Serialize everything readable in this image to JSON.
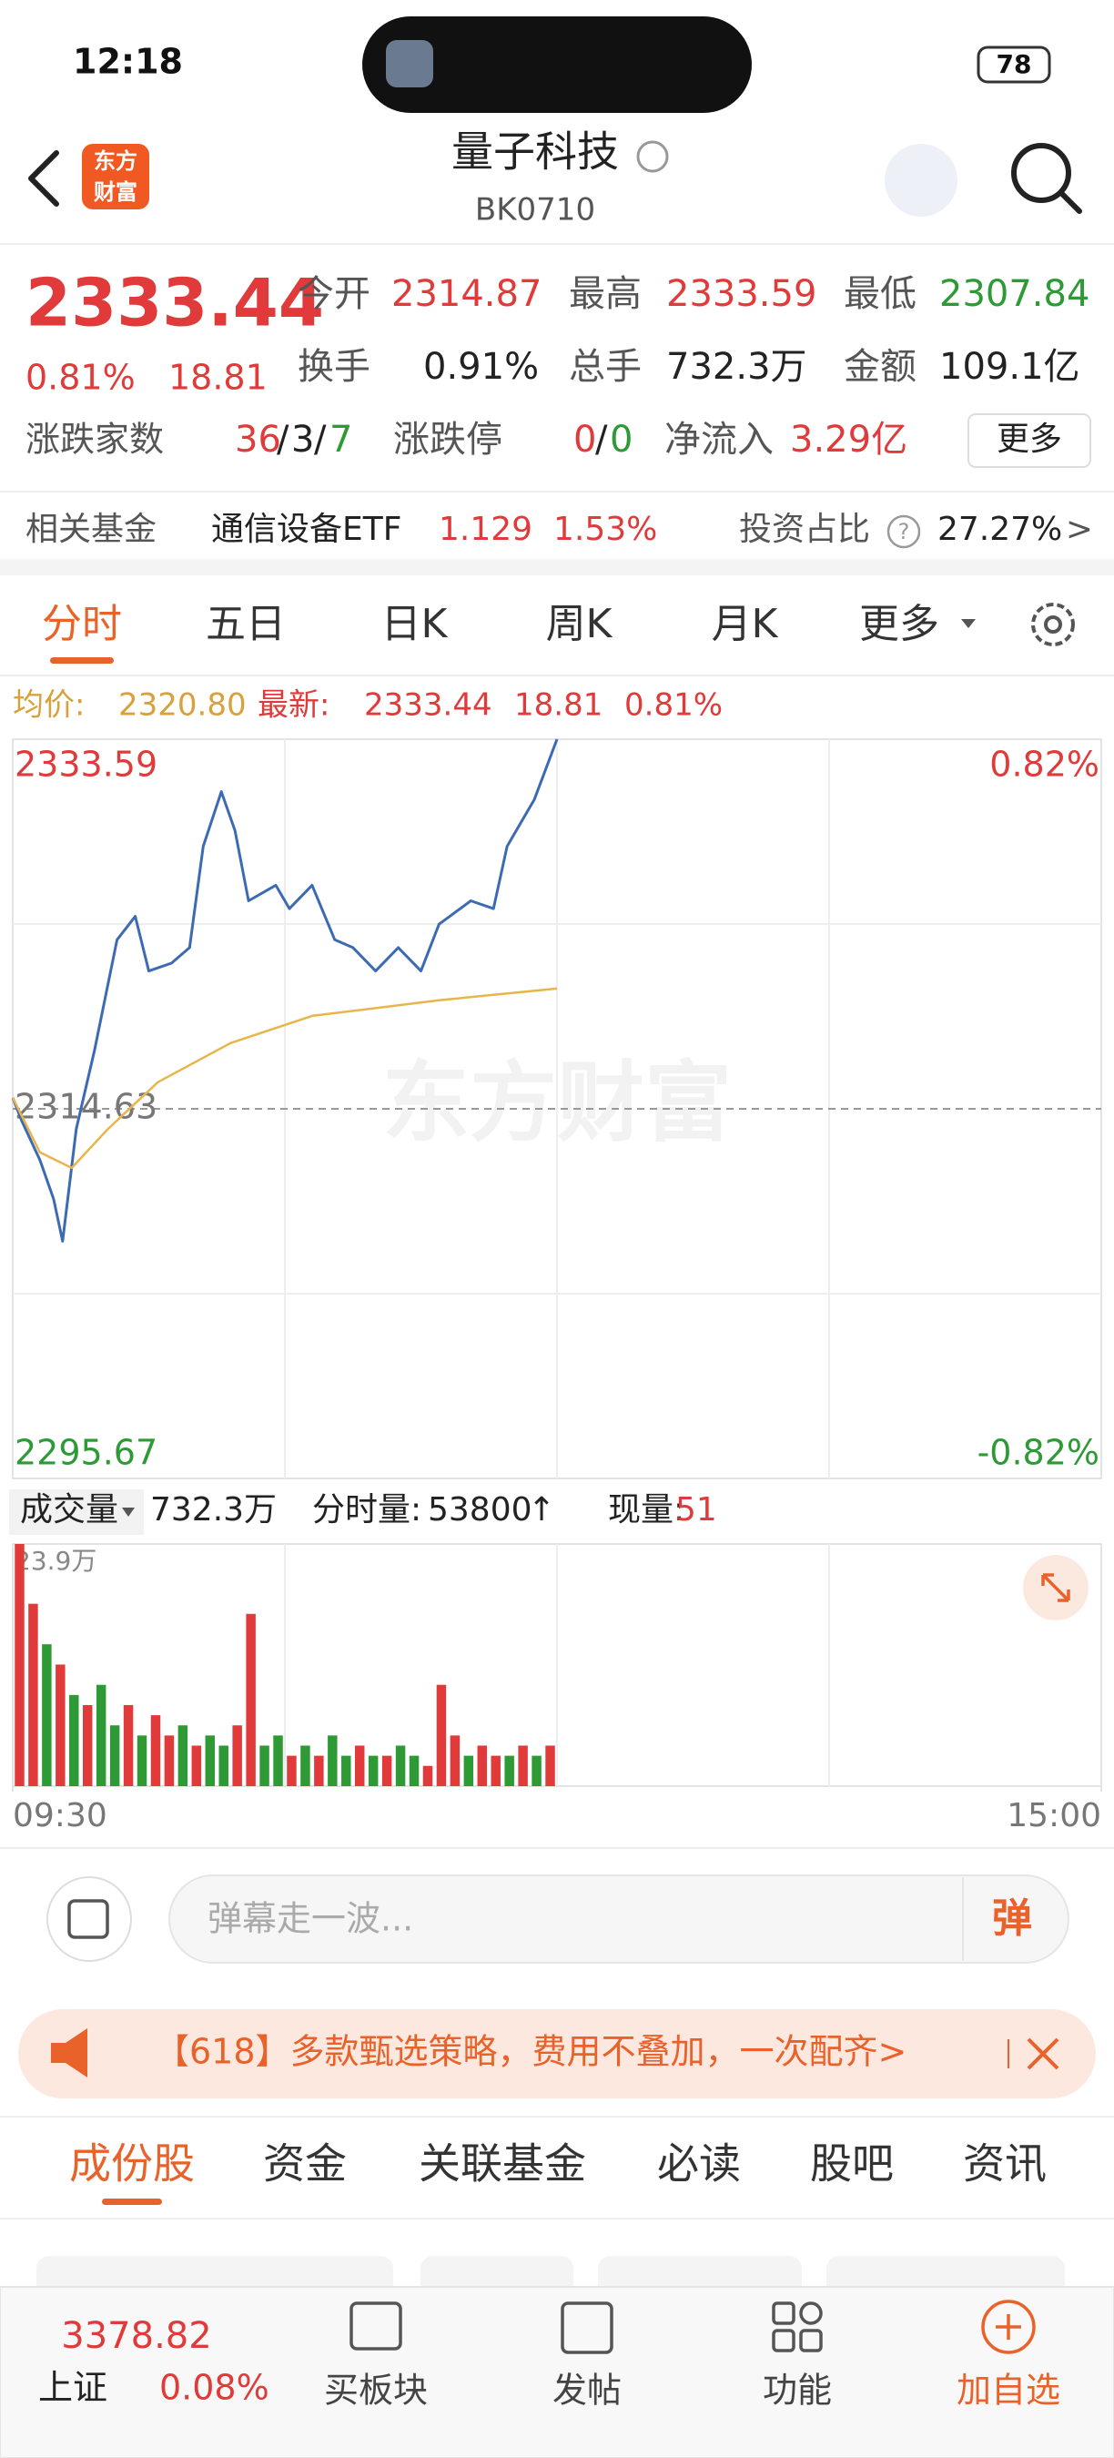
{
  "status_bar": {
    "time": "12:18",
    "battery": "78"
  },
  "header": {
    "logo": [
      "东方",
      "财富"
    ],
    "title": "量子科技",
    "code": "BK0710"
  },
  "quote": {
    "price": "2333.44",
    "change_pct": "0.81%",
    "change": "18.81",
    "stats": [
      {
        "label": "今开",
        "value": "2314.87"
      },
      {
        "label": "最高",
        "value": "2333.59"
      },
      {
        "label": "最低",
        "value": "2307.84"
      },
      {
        "label": "换手",
        "value": "0.91%"
      },
      {
        "label": "总手",
        "value": "732.3万"
      },
      {
        "label": "金额",
        "value": "109.1亿"
      }
    ],
    "breadth": {
      "label": "涨跌家数",
      "up": "36",
      "flat": "3",
      "down": "7"
    },
    "limit": {
      "label": "涨跌停",
      "up": "0",
      "down": "0"
    },
    "separator": "/",
    "net_inflow": {
      "label": "净流入",
      "value": "3.29亿"
    },
    "more_button": "更多"
  },
  "fund": {
    "label": "相关基金",
    "name": "通信设备ETF",
    "price": "1.129",
    "change": "1.53%",
    "ratio_label": "投资占比",
    "help_icon": "?",
    "ratio": "27.27%",
    "arrow": ">"
  },
  "tabs": [
    "分时",
    "五日",
    "日K",
    "周K",
    "月K",
    "更多"
  ],
  "chart_data": [
    {
      "type": "line",
      "avg_label": "均价:",
      "avg_value": "2320.80",
      "latest_label": "最新:",
      "latest": "2333.44",
      "latest_change": "18.81",
      "latest_pct": "0.81%",
      "watermark": "东方财富",
      "xlim": [
        0,
        240
      ],
      "xticks": [
        {
          "value": 0,
          "label": "09:30"
        },
        {
          "value": 240,
          "label": "15:00"
        }
      ],
      "ylim": [
        2295.67,
        2333.59
      ],
      "yticks": [
        2295.67,
        2314.63,
        2333.59
      ],
      "y2lim": [
        -0.82,
        0.82
      ],
      "y2ticks": [
        {
          "value": -0.82,
          "label": "-0.82%"
        },
        {
          "value": 0.82,
          "label": "0.82%"
        }
      ],
      "series": [
        {
          "color": "#3d6bb3",
          "x": [
            0,
            2,
            6,
            9,
            11,
            14,
            18,
            23,
            27,
            30,
            35,
            39,
            42,
            46,
            49,
            52,
            58,
            61,
            66,
            71,
            75,
            80,
            85,
            90,
            94,
            101,
            106,
            109,
            115,
            120
          ],
          "values": [
            2315.2,
            2314.0,
            2312.0,
            2310.0,
            2307.84,
            2313.6,
            2317.6,
            2323.3,
            2324.5,
            2321.7,
            2322.1,
            2322.9,
            2328.1,
            2330.9,
            2328.9,
            2325.3,
            2326.1,
            2324.9,
            2326.1,
            2323.3,
            2322.9,
            2321.7,
            2322.9,
            2321.7,
            2324.1,
            2325.3,
            2324.9,
            2328.1,
            2330.5,
            2333.59
          ]
        },
        {
          "color": "#e8b54a",
          "x": [
            0,
            6,
            13,
            21,
            32,
            48,
            66,
            94,
            120
          ],
          "values": [
            2315.2,
            2312.4,
            2311.6,
            2313.6,
            2316.0,
            2318.0,
            2319.4,
            2320.2,
            2320.8
          ]
        }
      ]
    },
    {
      "type": "bar",
      "label": "成交量",
      "total": "732.3万",
      "minute_label": "分时量:",
      "minute_value": "53800",
      "arrow": "↑",
      "current_label": "现量:",
      "current": "51",
      "xlim": [
        0,
        240
      ],
      "ylim": [
        0,
        23.9
      ],
      "yticks": [
        {
          "value": 23.9,
          "label": "23.9万"
        }
      ],
      "x": [
        0,
        3,
        6,
        9,
        12,
        15,
        18,
        21,
        24,
        27,
        30,
        33,
        36,
        39,
        42,
        45,
        48,
        51,
        54,
        57,
        60,
        63,
        66,
        69,
        72,
        75,
        78,
        81,
        84,
        87,
        90,
        93,
        96,
        99,
        102,
        105,
        108,
        111,
        114,
        117
      ],
      "values": [
        23.9,
        18,
        14,
        12,
        9,
        8,
        10,
        6,
        8,
        5,
        7,
        5,
        6,
        4,
        5,
        4,
        6,
        17,
        4,
        5,
        3,
        4,
        3,
        5,
        3,
        4,
        3,
        3,
        4,
        3,
        2,
        10,
        5,
        3,
        4,
        3,
        3,
        4,
        3,
        4
      ],
      "colors": [
        "#e03a3a",
        "#e03a3a",
        "#2e9a36",
        "#e03a3a",
        "#2e9a36",
        "#e03a3a",
        "#2e9a36",
        "#2e9a36",
        "#e03a3a",
        "#2e9a36",
        "#e03a3a",
        "#e03a3a",
        "#2e9a36",
        "#e03a3a",
        "#2e9a36",
        "#2e9a36",
        "#e03a3a",
        "#e03a3a",
        "#2e9a36",
        "#2e9a36",
        "#e03a3a",
        "#2e9a36",
        "#e03a3a",
        "#2e9a36",
        "#2e9a36",
        "#e03a3a",
        "#2e9a36",
        "#e03a3a",
        "#2e9a36",
        "#2e9a36",
        "#e03a3a",
        "#e03a3a",
        "#e03a3a",
        "#2e9a36",
        "#e03a3a",
        "#e03a3a",
        "#2e9a36",
        "#e03a3a",
        "#2e9a36",
        "#e03a3a"
      ]
    }
  ],
  "comment": {
    "placeholder": "弹幕走一波...",
    "button": "弹"
  },
  "banner": {
    "text": "【618】多款甄选策略，费用不叠加，一次配齐>"
  },
  "bottom_tabs": [
    "成份股",
    "资金",
    "关联基金",
    "必读",
    "股吧",
    "资讯"
  ],
  "nav": {
    "index_value": "3378.82",
    "index_name": "上证",
    "index_pct": "0.08%",
    "items": [
      "买板块",
      "发帖",
      "功能",
      "加自选"
    ]
  }
}
